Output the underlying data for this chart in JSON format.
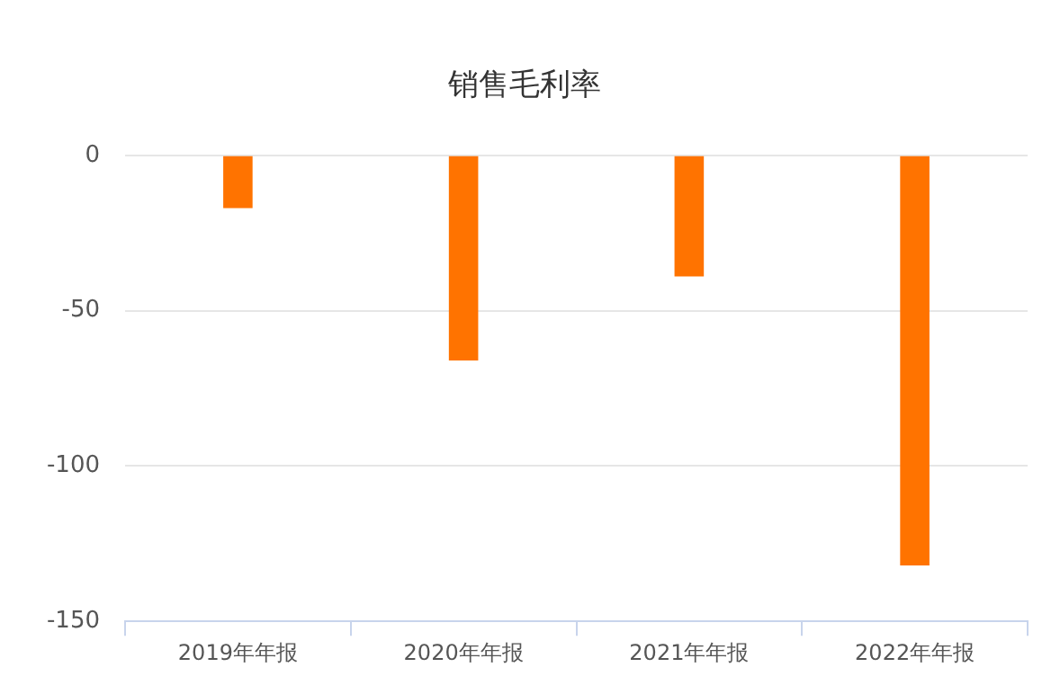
{
  "chart_data": {
    "type": "bar",
    "title": "销售毛利率",
    "categories": [
      "2019年年报",
      "2020年年报",
      "2021年年报",
      "2022年年报"
    ],
    "values": [
      -17,
      -66,
      -39,
      -132
    ],
    "color": "#ff7300",
    "ylim": [
      -150,
      0
    ],
    "yticks": [
      -150,
      -100,
      -50,
      0
    ],
    "grid": "y",
    "legend": false
  }
}
